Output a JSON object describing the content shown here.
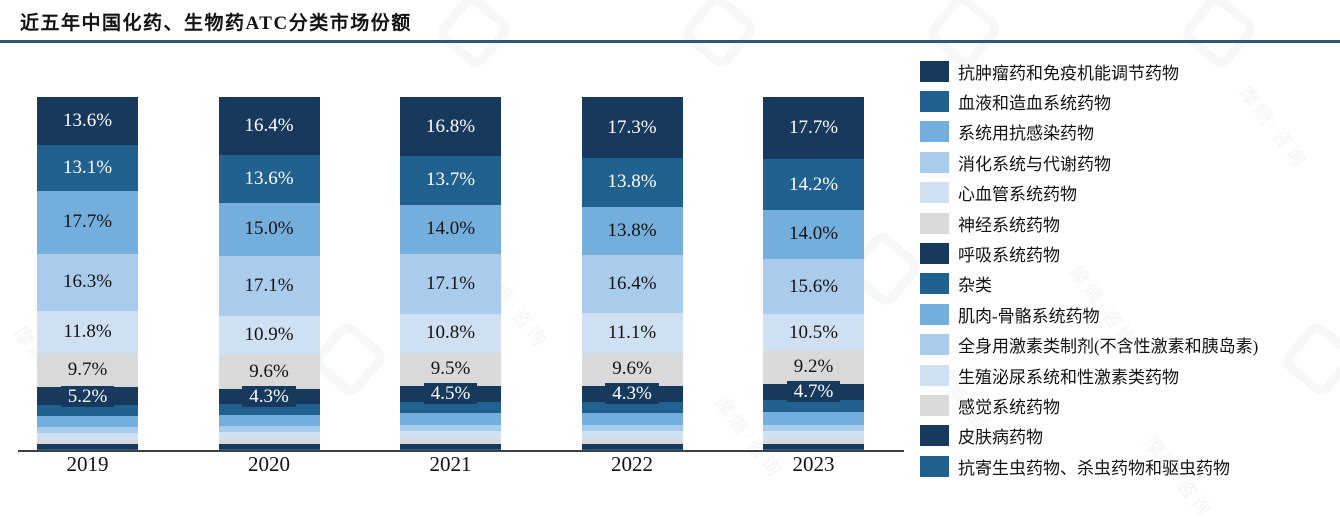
{
  "title": "近五年中国化药、生物药ATC分类市场份额",
  "watermark": {
    "text": "摩熵·咨询"
  },
  "accent_rule_color": "#2e5878",
  "axis_line_color": "#404040",
  "chart_data": {
    "type": "bar",
    "stacked": true,
    "unit": "%",
    "title": "近五年中国化药、生物药ATC分类市场份额",
    "xlabel": "",
    "ylabel": "",
    "ylim": [
      0,
      100
    ],
    "grid": false,
    "legend_position": "right",
    "categories": [
      "2019",
      "2020",
      "2021",
      "2022",
      "2023"
    ],
    "series": [
      {
        "name": "抗肿瘤药和免疫机能调节药物",
        "color": "#17395e",
        "label_color": "#ffffff",
        "labeled": true,
        "boxed": false,
        "estimated": false,
        "values": [
          13.6,
          16.4,
          16.8,
          17.3,
          17.7
        ]
      },
      {
        "name": "血液和造血系统药物",
        "color": "#20618f",
        "label_color": "#ffffff",
        "labeled": true,
        "boxed": false,
        "estimated": false,
        "values": [
          13.1,
          13.6,
          13.7,
          13.8,
          14.2
        ]
      },
      {
        "name": "系统用抗感染药物",
        "color": "#74aedc",
        "label_color": "#121212",
        "labeled": true,
        "boxed": false,
        "estimated": false,
        "values": [
          17.7,
          15.0,
          14.0,
          13.8,
          14.0
        ]
      },
      {
        "name": "消化系统与代谢药物",
        "color": "#a9ccec",
        "label_color": "#121212",
        "labeled": true,
        "boxed": false,
        "estimated": false,
        "values": [
          16.3,
          17.1,
          17.1,
          16.4,
          15.6
        ]
      },
      {
        "name": "心血管系统药物",
        "color": "#cfe0f3",
        "label_color": "#121212",
        "labeled": true,
        "boxed": false,
        "estimated": false,
        "values": [
          11.8,
          10.9,
          10.8,
          11.1,
          10.5
        ]
      },
      {
        "name": "神经系统药物",
        "color": "#d9d9d9",
        "label_color": "#121212",
        "labeled": true,
        "boxed": false,
        "estimated": false,
        "values": [
          9.7,
          9.6,
          9.5,
          9.6,
          9.2
        ]
      },
      {
        "name": "呼吸系统药物",
        "color": "#17395e",
        "label_color": "#ffffff",
        "labeled": true,
        "boxed": true,
        "estimated": false,
        "values": [
          5.2,
          4.3,
          4.5,
          4.3,
          4.7
        ]
      },
      {
        "name": "杂类",
        "color": "#20618f",
        "label_color": "#ffffff",
        "labeled": false,
        "boxed": false,
        "estimated": true,
        "values": [
          3.0,
          3.1,
          3.2,
          3.2,
          3.3
        ]
      },
      {
        "name": "肌肉-骨骼系统药物",
        "color": "#74aedc",
        "label_color": "#121212",
        "labeled": false,
        "boxed": false,
        "estimated": true,
        "values": [
          3.2,
          3.3,
          3.4,
          3.5,
          3.6
        ]
      },
      {
        "name": "全身用激素类制剂(不含性激素和胰岛素)",
        "color": "#a9ccec",
        "label_color": "#121212",
        "labeled": false,
        "boxed": false,
        "estimated": true,
        "values": [
          1.5,
          1.6,
          1.7,
          1.7,
          1.8
        ]
      },
      {
        "name": "生殖泌尿系统和性激素类药物",
        "color": "#cfe0f3",
        "label_color": "#121212",
        "labeled": false,
        "boxed": false,
        "estimated": true,
        "values": [
          2.0,
          2.1,
          2.2,
          2.2,
          2.3
        ]
      },
      {
        "name": "感觉系统药物",
        "color": "#d9d9d9",
        "label_color": "#121212",
        "labeled": false,
        "boxed": false,
        "estimated": true,
        "values": [
          1.2,
          1.2,
          1.3,
          1.3,
          1.3
        ]
      },
      {
        "name": "皮肤病药物",
        "color": "#17395e",
        "label_color": "#ffffff",
        "labeled": false,
        "boxed": false,
        "estimated": true,
        "values": [
          1.5,
          1.6,
          1.6,
          1.6,
          1.6
        ]
      },
      {
        "name": "抗寄生虫药物、杀虫药物和驱虫药物",
        "color": "#20618f",
        "label_color": "#ffffff",
        "labeled": false,
        "boxed": false,
        "estimated": true,
        "values": [
          0.2,
          0.2,
          0.2,
          0.2,
          0.2
        ]
      }
    ]
  }
}
